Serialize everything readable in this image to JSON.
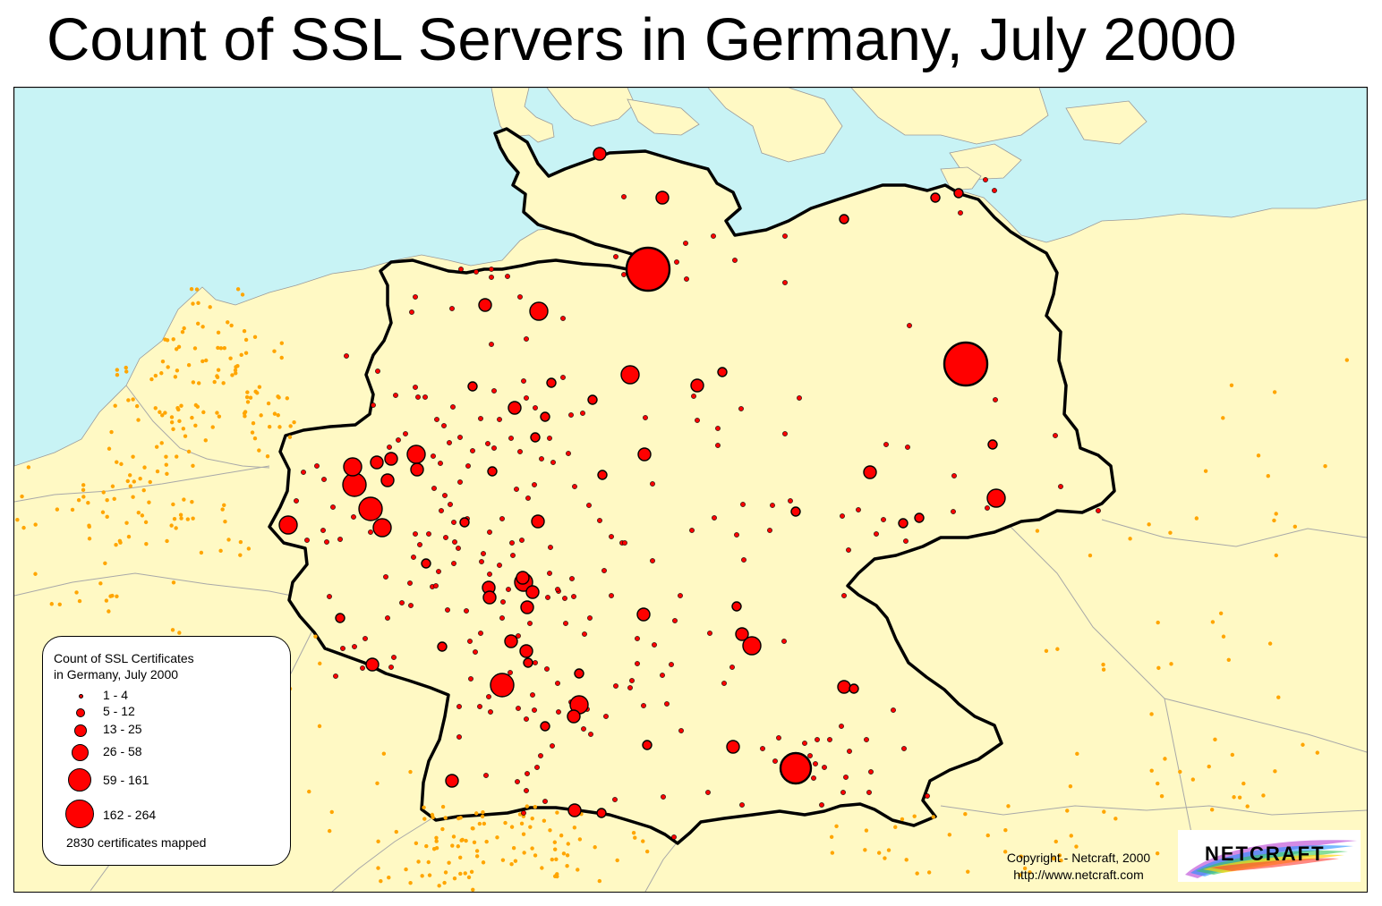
{
  "title": "Count of SSL Servers in Germany, July 2000",
  "legend": {
    "title_line1": "Count of SSL Certificates",
    "title_line2": "in Germany, July 2000",
    "classes": [
      {
        "label": "1 - 4",
        "size_rank": 1
      },
      {
        "label": "5 - 12",
        "size_rank": 2
      },
      {
        "label": "13 - 25",
        "size_rank": 3
      },
      {
        "label": "26 - 58",
        "size_rank": 4
      },
      {
        "label": "59 - 161",
        "size_rank": 5
      },
      {
        "label": "162 - 264",
        "size_rank": 6
      }
    ],
    "footer": "2830 certificates mapped"
  },
  "copyright": {
    "line1": "Copyright - Netcraft, 2000",
    "line2": "http://www.netcraft.com"
  },
  "logo": {
    "text": "NETCRAFT"
  },
  "colors": {
    "sea": "#c8f3f5",
    "land": "#fff9c4",
    "marker_fill": "#ff0000",
    "marker_stroke": "#000000",
    "foreign_dots": "#ffa500",
    "border": "#000000"
  }
}
